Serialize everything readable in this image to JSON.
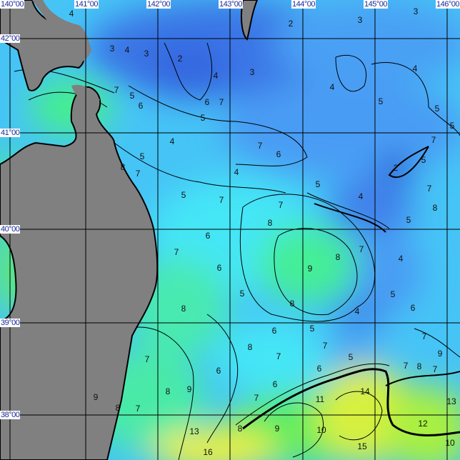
{
  "map": {
    "longitude_labels": [
      "140°00",
      "141°00",
      "142°00",
      "143°00",
      "144°00",
      "145°00",
      "146°00"
    ],
    "latitude_labels": [
      "42°00",
      "41°00",
      "40°00",
      "39°00",
      "38°00"
    ],
    "isotherm_labels": [
      "4",
      "2",
      "3",
      "3",
      "3",
      "4",
      "3",
      "2",
      "3",
      "4",
      "4",
      "4",
      "7",
      "5",
      "6",
      "6",
      "7",
      "5",
      "5",
      "5",
      "5",
      "4",
      "7",
      "6",
      "7",
      "5",
      "8",
      "7",
      "2",
      "5",
      "4",
      "5",
      "4",
      "7",
      "5",
      "7",
      "7",
      "8",
      "8",
      "5",
      "6",
      "7",
      "7",
      "8",
      "9",
      "4",
      "6",
      "5",
      "8",
      "5",
      "6",
      "8",
      "4",
      "6",
      "5",
      "7",
      "8",
      "7",
      "7",
      "5",
      "9",
      "7",
      "6",
      "6",
      "7",
      "8",
      "7",
      "6",
      "9",
      "8",
      "11",
      "14",
      "7",
      "9",
      "8",
      "7",
      "13",
      "12",
      "13",
      "8",
      "9",
      "10",
      "15",
      "16",
      "10"
    ],
    "colors": {
      "land": "#808080",
      "cold": "#3a76e6",
      "cool": "#4aa6f6",
      "mid": "#44e6f6",
      "warm": "#44ee90",
      "warmer": "#a8f040",
      "hot": "#f0f040",
      "grid": "#000000"
    }
  }
}
